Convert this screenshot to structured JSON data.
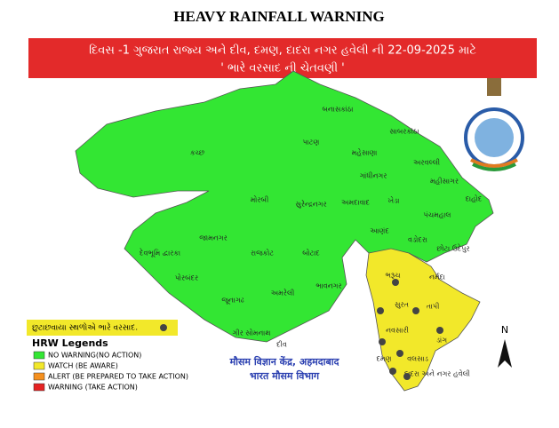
{
  "title": "HEAVY RAINFALL WARNING",
  "banner": [
    "દિવસ -1 ગુજરાત રાજ્ય અને દીવ, દમણ, દાદરા નગર હવેલી ની 22-09-2025 માટે",
    "' ભારે વરસાદ ની ચેતવણી '"
  ],
  "districts": [
    {
      "label": "કચ્છ"
    },
    {
      "label": "બનાસકાંઠા"
    },
    {
      "label": "પાટણ"
    },
    {
      "label": "મહેસાણા"
    },
    {
      "label": "સાબરકાંઠા"
    },
    {
      "label": "અરવલ્લી"
    },
    {
      "label": "ગાંધીનગર"
    },
    {
      "label": "મહીસાગર"
    },
    {
      "label": "દાહોદ"
    },
    {
      "label": "મોરબી"
    },
    {
      "label": "સુરેન્દ્રનગર"
    },
    {
      "label": "અમદાવાદ"
    },
    {
      "label": "ખેડા"
    },
    {
      "label": "પંચમહાલ"
    },
    {
      "label": "આણંદ"
    },
    {
      "label": "વડોદરા"
    },
    {
      "label": "છોટા ઉદેપુર"
    },
    {
      "label": "જામનગર"
    },
    {
      "label": "દેવભૂમિ દ્વારકા"
    },
    {
      "label": "રાજકોટ"
    },
    {
      "label": "બોટાદ"
    },
    {
      "label": "પોરબંદર"
    },
    {
      "label": "જૂનાગઢ"
    },
    {
      "label": "અમરેલી"
    },
    {
      "label": "ભાવનગર"
    },
    {
      "label": "ગીર સોમનાથ"
    },
    {
      "label": "દીવ"
    },
    {
      "label": "ભરૂચ"
    },
    {
      "label": "નર્મદા"
    },
    {
      "label": "સુરત"
    },
    {
      "label": "તાપી"
    },
    {
      "label": "નવસારી"
    },
    {
      "label": "ડાંગ"
    },
    {
      "label": "દમણ"
    },
    {
      "label": "વલસાડ"
    },
    {
      "label": "દાદરા અને નગર હવેલી"
    }
  ],
  "callout": "છુટાછવાયા સ્થળોએ ભારે વરસાદ.",
  "legend": {
    "title": "HRW Legends",
    "items": [
      {
        "label": "NO WARNING(NO ACTION)",
        "color": "#33e633"
      },
      {
        "label": "WATCH (BE AWARE)",
        "color": "#f2e82a"
      },
      {
        "label": "ALERT (BE PREPARED TO TAKE ACTION)",
        "color": "#f5901e"
      },
      {
        "label": "WARNING (TAKE ACTION)",
        "color": "#e52222"
      }
    ]
  },
  "office": [
    "मौसम विज्ञान केंद्र, अहमदाबाद",
    "भारत मौसम विभाग"
  ],
  "north": "N"
}
